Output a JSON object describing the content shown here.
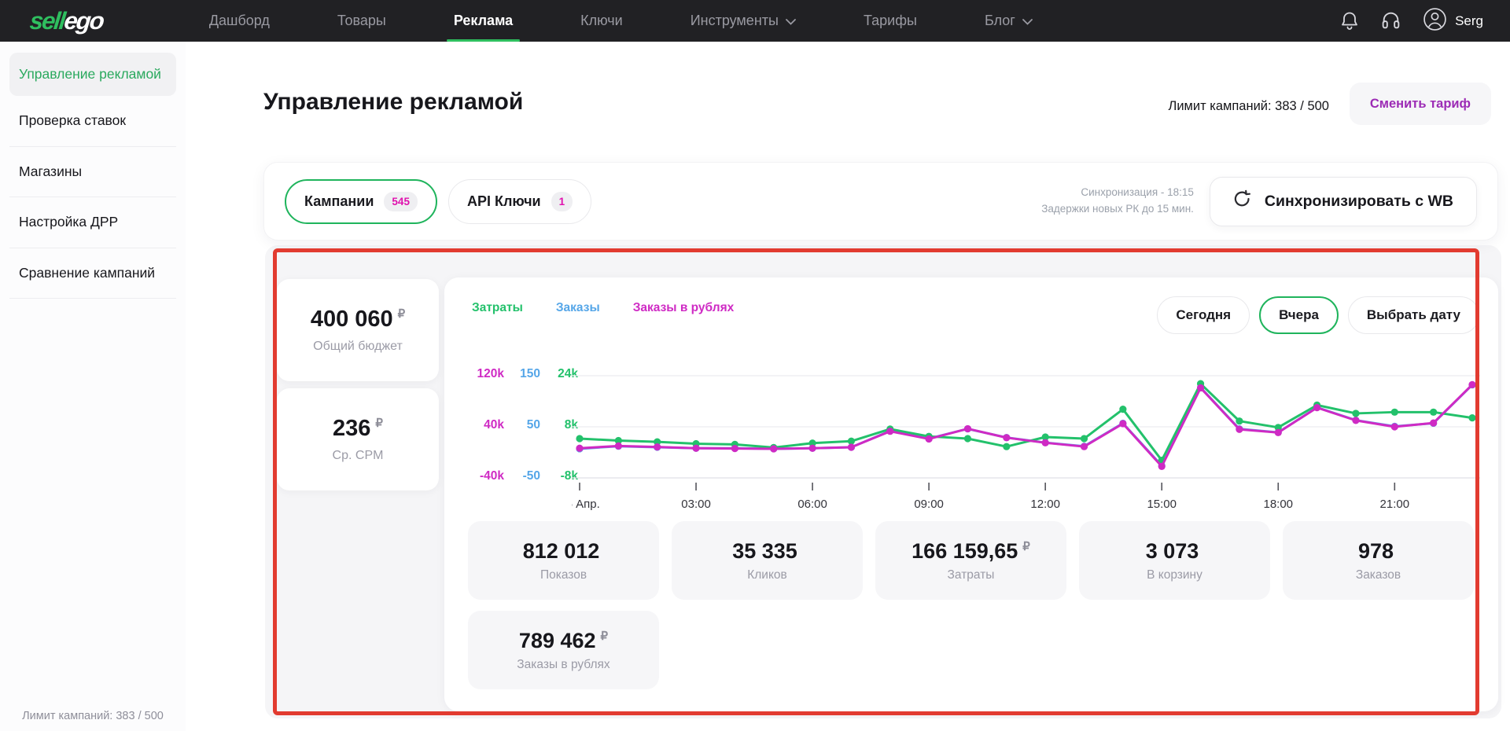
{
  "nav": {
    "logo": {
      "sell": "sell",
      "ego": "ego"
    },
    "items": [
      {
        "label": "Дашборд"
      },
      {
        "label": "Товары"
      },
      {
        "label": "Реклама"
      },
      {
        "label": "Ключи"
      },
      {
        "label": "Инструменты"
      },
      {
        "label": "Тарифы"
      },
      {
        "label": "Блог"
      }
    ],
    "user_name": "Serg"
  },
  "sidebar": {
    "items": [
      {
        "label": "Управление рекламой"
      },
      {
        "label": "Проверка ставок"
      },
      {
        "label": "Магазины"
      },
      {
        "label": "Настройка ДРР"
      },
      {
        "label": "Сравнение кампаний"
      }
    ],
    "footer": "Лимит кампаний: 383 / 500"
  },
  "header": {
    "title": "Управление рекламой",
    "campaign_limit": "Лимит кампаний: 383 / 500",
    "change_tariff_button": "Сменить тариф"
  },
  "tabs_bar": {
    "campaigns_tab": {
      "label": "Кампании",
      "badge": "545"
    },
    "api_keys_tab": {
      "label": "API Ключи",
      "badge": "1"
    },
    "sync_info_line1": "Синхронизация - 18:15",
    "sync_info_line2": "Задержки новых РК до 15 мин.",
    "sync_button": "Синхронизировать с WB"
  },
  "summary_cards": [
    {
      "value": "400 060",
      "currency": "₽",
      "label": "Общий бюджет"
    },
    {
      "value": "236",
      "currency": "₽",
      "label": "Ср. CPM"
    }
  ],
  "date_filters": [
    {
      "label": "Сегодня"
    },
    {
      "label": "Вчера"
    },
    {
      "label": "Выбрать дату"
    }
  ],
  "chart_data": {
    "type": "line",
    "x_labels": [
      "15 Апр.",
      "03:00",
      "06:00",
      "09:00",
      "12:00",
      "15:00",
      "18:00",
      "21:00"
    ],
    "x_points_per_label": 3,
    "grid": true,
    "legend_position": "top-left",
    "series": [
      {
        "name": "Затраты",
        "color": "#23c16b",
        "axis_ticks": [
          "24k",
          "8k",
          "-8k"
        ],
        "axis_range": [
          -8000,
          24000
        ],
        "values": [
          4300,
          3700,
          3300,
          2700,
          2500,
          1500,
          2900,
          3500,
          7300,
          5000,
          4300,
          1800,
          4800,
          4300,
          13500,
          -2500,
          21500,
          9800,
          7800,
          14800,
          12200,
          12600,
          12600,
          10800
        ]
      },
      {
        "name": "Заказы",
        "color": "#55a6e8",
        "axis_ticks": [
          "150",
          "50",
          "-50"
        ],
        "axis_range": [
          -50,
          150
        ],
        "values": [
          7,
          12,
          10,
          8,
          8,
          7,
          8,
          10,
          42,
          27,
          46,
          29,
          19,
          12,
          57,
          -26,
          127,
          46,
          39,
          88,
          63,
          51,
          57,
          132
        ]
      },
      {
        "name": "Заказы в рублях",
        "color": "#cf2ac4",
        "axis_ticks": [
          "120k",
          "40k",
          "-40k"
        ],
        "axis_range": [
          -40000,
          120000
        ],
        "values": [
          6500,
          10000,
          8500,
          6500,
          6000,
          5500,
          6500,
          8000,
          33000,
          21000,
          37000,
          23000,
          15000,
          9000,
          45000,
          -22000,
          101000,
          36000,
          31000,
          70000,
          50000,
          40000,
          46000,
          106000
        ]
      }
    ]
  },
  "stats": [
    {
      "value": "812 012",
      "currency": "",
      "label": "Показов"
    },
    {
      "value": "35 335",
      "currency": "",
      "label": "Кликов"
    },
    {
      "value": "166 159,65",
      "currency": "₽",
      "label": "Затраты"
    },
    {
      "value": "3 073",
      "currency": "",
      "label": "В корзину"
    },
    {
      "value": "978",
      "currency": "",
      "label": "Заказов"
    },
    {
      "value": "789 462",
      "currency": "₽",
      "label": "Заказы в рублях"
    }
  ]
}
